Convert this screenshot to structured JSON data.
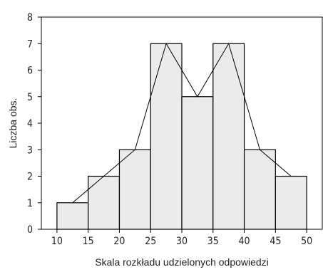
{
  "chart_data": {
    "type": "bar",
    "subtype": "histogram",
    "xlabel": "Skala rozkładu udzielonych odpowiedzi",
    "ylabel": "Liczba obs.",
    "x_ticks": [
      10,
      15,
      20,
      25,
      30,
      35,
      40,
      45,
      50
    ],
    "y_ticks": [
      0,
      1,
      2,
      3,
      4,
      5,
      6,
      7,
      8
    ],
    "xlim": [
      7.5,
      52.5
    ],
    "ylim": [
      0,
      8
    ],
    "bins": [
      {
        "start": 10,
        "end": 15,
        "value": 1
      },
      {
        "start": 15,
        "end": 20,
        "value": 2
      },
      {
        "start": 20,
        "end": 25,
        "value": 3
      },
      {
        "start": 25,
        "end": 30,
        "value": 7
      },
      {
        "start": 30,
        "end": 35,
        "value": 5
      },
      {
        "start": 35,
        "end": 40,
        "value": 7
      },
      {
        "start": 40,
        "end": 45,
        "value": 3
      },
      {
        "start": 45,
        "end": 50,
        "value": 2
      }
    ],
    "polygon": {
      "x": [
        12.5,
        17.5,
        22.5,
        27.5,
        32.5,
        37.5,
        42.5,
        47.5
      ],
      "y": [
        1,
        2,
        3,
        7,
        5,
        7,
        3,
        2
      ]
    },
    "grid": false,
    "legend": "none",
    "colors": {
      "bar_fill": "#ebebeb",
      "bar_stroke": "#000000",
      "line": "#000000",
      "axis": "#000000"
    }
  }
}
